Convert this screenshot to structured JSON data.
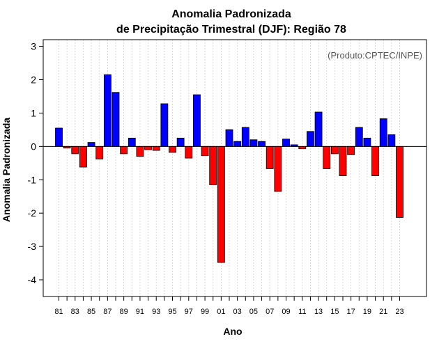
{
  "chart_data": {
    "type": "bar",
    "title_line1": "Anomalia Padronizada",
    "title_line2": "de Precipitação Trimestral (DJF): Região 78",
    "xlabel": "Ano",
    "ylabel": "Anomalia Padronizada",
    "credit": "(Produto:CPTEC/INPE)",
    "ylim": [
      -4.5,
      3.2
    ],
    "yticks": [
      -4,
      -3,
      -2,
      -1,
      0,
      1,
      2,
      3
    ],
    "positive_color": "#0000ff",
    "negative_color": "#ff0000",
    "categories": [
      "81",
      "82",
      "83",
      "84",
      "85",
      "86",
      "87",
      "88",
      "89",
      "90",
      "91",
      "92",
      "93",
      "94",
      "95",
      "96",
      "97",
      "98",
      "99",
      "00",
      "01",
      "02",
      "03",
      "04",
      "05",
      "06",
      "07",
      "08",
      "09",
      "10",
      "11",
      "12",
      "13",
      "14",
      "15",
      "16",
      "17",
      "18",
      "19",
      "20",
      "21",
      "22",
      "23"
    ],
    "x_tick_labels": [
      "81",
      "83",
      "85",
      "87",
      "89",
      "91",
      "93",
      "95",
      "97",
      "99",
      "01",
      "03",
      "05",
      "07",
      "09",
      "11",
      "13",
      "15",
      "17",
      "19",
      "21",
      "23"
    ],
    "values": [
      0.55,
      -0.05,
      -0.22,
      -0.62,
      0.12,
      -0.38,
      2.15,
      1.62,
      -0.22,
      0.25,
      -0.3,
      -0.1,
      -0.12,
      1.28,
      -0.18,
      0.25,
      -0.35,
      1.55,
      -0.28,
      -1.15,
      -3.48,
      0.5,
      0.15,
      0.57,
      0.2,
      0.15,
      -0.67,
      -1.35,
      0.22,
      0.05,
      -0.07,
      0.45,
      1.03,
      -0.67,
      -0.22,
      -0.88,
      -0.25,
      0.57,
      0.25,
      -0.88,
      0.83,
      0.35,
      -2.13
    ]
  }
}
